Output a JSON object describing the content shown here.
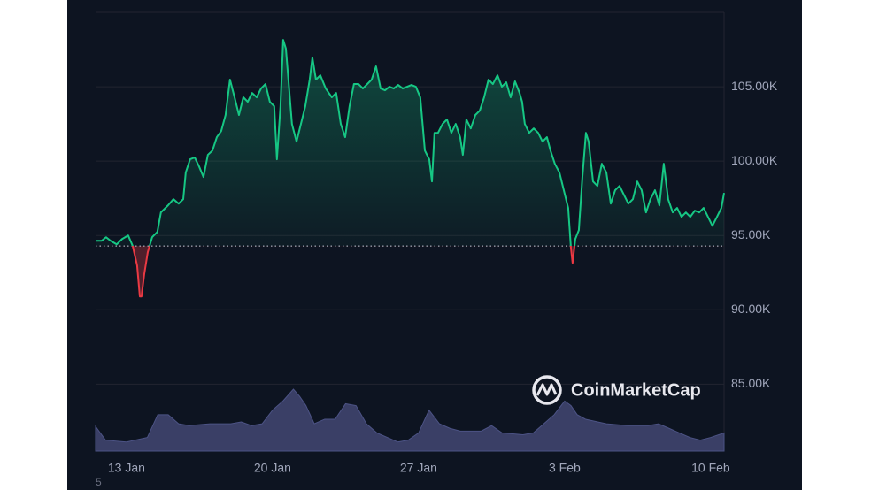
{
  "chart_data": {
    "type": "price-line",
    "x": [
      11.52,
      11.81,
      12.02,
      12.24,
      12.53,
      12.79,
      13.08,
      13.3,
      13.51,
      13.64,
      13.72,
      13.85,
      14.02,
      14.23,
      14.48,
      14.65,
      14.99,
      15.25,
      15.5,
      15.72,
      15.84,
      16.05,
      16.27,
      16.48,
      16.69,
      16.9,
      17.12,
      17.33,
      17.54,
      17.75,
      17.96,
      18.18,
      18.39,
      18.6,
      18.81,
      19.02,
      19.24,
      19.45,
      19.66,
      19.87,
      20.08,
      20.21,
      20.38,
      20.51,
      20.64,
      20.76,
      20.93,
      21.15,
      21.36,
      21.57,
      21.78,
      21.91,
      22.08,
      22.29,
      22.55,
      22.84,
      23.05,
      23.27,
      23.48,
      23.69,
      23.9,
      24.12,
      24.33,
      24.54,
      24.75,
      24.96,
      25.18,
      25.39,
      25.6,
      25.81,
      26.02,
      26.24,
      26.45,
      26.66,
      26.87,
      27.08,
      27.3,
      27.51,
      27.64,
      27.76,
      27.93,
      28.15,
      28.36,
      28.57,
      28.78,
      28.99,
      29.12,
      29.29,
      29.5,
      29.72,
      29.93,
      30.14,
      30.35,
      30.56,
      30.78,
      30.99,
      31.2,
      31.41,
      31.62,
      31.84,
      31.96,
      32.09,
      32.3,
      32.52,
      32.73,
      32.94,
      33.15,
      33.32,
      33.53,
      33.75,
      33.96,
      34.17,
      34.3,
      34.38,
      34.51,
      34.68,
      34.85,
      35.02,
      35.15,
      35.36,
      35.57,
      35.78,
      36.0,
      36.21,
      36.42,
      36.63,
      36.84,
      37.05,
      37.27,
      37.48,
      37.69,
      37.9,
      38.11,
      38.33,
      38.54,
      38.75,
      38.96,
      39.18,
      39.39,
      39.6,
      39.81,
      40.02,
      40.24,
      40.45,
      40.66,
      40.87,
      41.08,
      41.3,
      41.51,
      41.64
    ],
    "values": [
      94640,
      94640,
      94880,
      94640,
      94400,
      94760,
      95000,
      94290,
      92980,
      90890,
      90890,
      92380,
      93870,
      94880,
      95240,
      96550,
      97020,
      97440,
      97140,
      97440,
      99230,
      100120,
      100240,
      99640,
      98930,
      100420,
      100710,
      101610,
      102020,
      103100,
      105480,
      104290,
      103100,
      104290,
      103990,
      104580,
      104290,
      104880,
      105180,
      103990,
      103690,
      100120,
      103690,
      108150,
      107560,
      105480,
      102500,
      101310,
      102500,
      103690,
      105480,
      106960,
      105480,
      105770,
      104880,
      104290,
      104580,
      102500,
      101610,
      103690,
      105180,
      105180,
      104880,
      105180,
      105480,
      106370,
      104880,
      104760,
      105000,
      104880,
      105120,
      104880,
      105000,
      105120,
      105000,
      104290,
      100710,
      100120,
      98630,
      101900,
      101900,
      102500,
      102800,
      101900,
      102500,
      101610,
      100420,
      102800,
      102200,
      103100,
      103390,
      104290,
      105480,
      105180,
      105770,
      105000,
      105300,
      104290,
      105360,
      104580,
      103990,
      102500,
      101900,
      102200,
      101900,
      101310,
      101610,
      100710,
      99820,
      99230,
      98040,
      96850,
      94170,
      93150,
      94760,
      95360,
      98930,
      101900,
      101310,
      98630,
      98330,
      99820,
      99230,
      97140,
      98040,
      98330,
      97740,
      97140,
      97440,
      98630,
      98040,
      96550,
      97440,
      98040,
      97020,
      99820,
      97440,
      96550,
      96850,
      96250,
      96550,
      96250,
      96670,
      96550,
      96850,
      96250,
      95650,
      96250,
      96850,
      97860
    ],
    "color": "#16c784",
    "negative_color": "#ea3943",
    "reference_value": 94290,
    "volume": {
      "color": "#3a3f66",
      "x": [
        11.52,
        12,
        13,
        14,
        14.5,
        15,
        15.5,
        16,
        17,
        18,
        18.5,
        19,
        19.5,
        20,
        20.5,
        21,
        21.3,
        21.6,
        22,
        22.5,
        23,
        23.5,
        24,
        24.5,
        25,
        26,
        26.5,
        27,
        27.5,
        28,
        28.5,
        29,
        30,
        30.5,
        31,
        32,
        32.5,
        33,
        33.5,
        34,
        34.3,
        34.6,
        35,
        36,
        37,
        38,
        38.5,
        39,
        40,
        40.5,
        41,
        41.64
      ],
      "values": [
        27,
        12,
        10,
        15,
        40,
        40,
        30,
        28,
        30,
        30,
        32,
        28,
        30,
        45,
        55,
        68,
        60,
        50,
        30,
        35,
        35,
        52,
        50,
        30,
        20,
        10,
        12,
        20,
        45,
        30,
        25,
        22,
        22,
        28,
        20,
        18,
        20,
        30,
        40,
        55,
        50,
        40,
        35,
        30,
        28,
        28,
        30,
        25,
        15,
        12,
        15,
        20
      ]
    },
    "xlim": [
      11.52,
      41.64
    ],
    "xticks": [
      {
        "value": 13,
        "label": "13 Jan"
      },
      {
        "value": 20,
        "label": "20 Jan"
      },
      {
        "value": 27,
        "label": "27 Jan"
      },
      {
        "value": 34,
        "label": "3 Feb"
      },
      {
        "value": 41,
        "label": "10 Feb"
      }
    ],
    "ylim": [
      80500,
      110000
    ],
    "yticks": [
      {
        "value": 85000,
        "label": "85.00K"
      },
      {
        "value": 90000,
        "label": "90.00K"
      },
      {
        "value": 95000,
        "label": "95.00K"
      },
      {
        "value": 100000,
        "label": "100.00K"
      },
      {
        "value": 105000,
        "label": "105.00K"
      }
    ],
    "grid": true,
    "watermark": "CoinMarketCap",
    "footnote": "5"
  }
}
